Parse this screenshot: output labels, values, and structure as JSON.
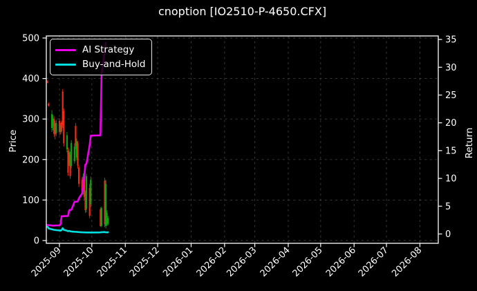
{
  "chart_data": {
    "type": "candlestick+line",
    "title": "cnoption [IO2510-P-4650.CFX]",
    "x_axis": {
      "ticks": [
        "2025-09",
        "2025-10",
        "2025-11",
        "2025-12",
        "2026-01",
        "2026-02",
        "2026-03",
        "2026-04",
        "2026-05",
        "2026-06",
        "2026-07",
        "2026-08"
      ],
      "tick_rotation_deg": 45
    },
    "left_axis": {
      "label": "Price",
      "ticks": [
        0,
        100,
        200,
        300,
        400,
        500
      ],
      "range": [
        0,
        500
      ]
    },
    "right_axis": {
      "label": "Return",
      "ticks": [
        0,
        5,
        10,
        15,
        20,
        25,
        30,
        35
      ],
      "range": [
        0,
        35
      ]
    },
    "legend": [
      {
        "label": "AI Strategy",
        "color": "#ee00ee"
      },
      {
        "label": "Buy-and-Hold",
        "color": "#00e0e0"
      }
    ],
    "colors": {
      "background": "#000000",
      "text": "#ffffff",
      "grid": "#575757",
      "candle_up": "#14a014",
      "candle_down": "#ea2d18"
    },
    "grid": true,
    "candles_columns": [
      "date",
      "open",
      "high",
      "low",
      "close"
    ],
    "candles": [
      [
        "2025-08-21",
        393,
        396,
        388,
        390
      ],
      [
        "2025-08-22",
        338,
        341,
        331,
        333
      ],
      [
        "2025-08-25",
        278,
        322,
        268,
        312
      ],
      [
        "2025-08-26",
        282,
        310,
        272,
        302
      ],
      [
        "2025-08-27",
        300,
        306,
        256,
        264
      ],
      [
        "2025-08-28",
        290,
        296,
        250,
        262
      ],
      [
        "2025-08-29",
        265,
        298,
        258,
        290
      ],
      [
        "2025-09-01",
        295,
        302,
        260,
        268
      ],
      [
        "2025-09-02",
        268,
        290,
        262,
        284
      ],
      [
        "2025-09-03",
        292,
        296,
        264,
        270
      ],
      [
        "2025-09-04",
        368,
        374,
        278,
        286
      ],
      [
        "2025-09-05",
        320,
        326,
        232,
        240
      ],
      [
        "2025-09-08",
        225,
        268,
        218,
        260
      ],
      [
        "2025-09-09",
        222,
        230,
        160,
        167
      ],
      [
        "2025-09-10",
        190,
        226,
        184,
        218
      ],
      [
        "2025-09-11",
        213,
        220,
        152,
        159
      ],
      [
        "2025-09-12",
        184,
        248,
        178,
        241
      ],
      [
        "2025-09-15",
        196,
        240,
        190,
        232
      ],
      [
        "2025-09-16",
        283,
        290,
        225,
        233
      ],
      [
        "2025-09-17",
        205,
        252,
        198,
        245
      ],
      [
        "2025-09-18",
        240,
        246,
        178,
        185
      ],
      [
        "2025-09-19",
        180,
        186,
        132,
        140
      ],
      [
        "2025-09-22",
        150,
        156,
        115,
        122
      ],
      [
        "2025-09-23",
        122,
        166,
        114,
        158
      ],
      [
        "2025-09-24",
        152,
        158,
        100,
        108
      ],
      [
        "2025-09-25",
        118,
        124,
        68,
        75
      ],
      [
        "2025-09-26",
        78,
        165,
        70,
        159
      ],
      [
        "2025-09-29",
        130,
        140,
        55,
        61
      ],
      [
        "2025-09-30",
        90,
        158,
        82,
        150
      ],
      [
        "2025-10-09",
        77,
        82,
        34,
        36
      ],
      [
        "2025-10-10",
        36,
        84,
        33,
        80
      ],
      [
        "2025-10-13",
        148,
        155,
        33,
        40
      ],
      [
        "2025-10-14",
        36,
        150,
        30,
        140
      ],
      [
        "2025-10-15",
        40,
        74,
        36,
        68
      ],
      [
        "2025-10-16",
        42,
        60,
        38,
        55
      ]
    ],
    "series": [
      {
        "name": "AI Strategy",
        "axis": "right",
        "color": "#ee00ee",
        "points": [
          [
            "2025-08-21",
            1.6
          ],
          [
            "2025-08-26",
            1.5
          ],
          [
            "2025-09-01",
            1.55
          ],
          [
            "2025-09-02",
            1.75
          ],
          [
            "2025-09-03",
            3.2
          ],
          [
            "2025-09-09",
            3.25
          ],
          [
            "2025-09-10",
            4.3
          ],
          [
            "2025-09-12",
            4.35
          ],
          [
            "2025-09-15",
            5.8
          ],
          [
            "2025-09-18",
            5.85
          ],
          [
            "2025-09-19",
            6.4
          ],
          [
            "2025-09-22",
            7.3
          ],
          [
            "2025-09-23",
            8.6
          ],
          [
            "2025-09-24",
            10.4
          ],
          [
            "2025-09-25",
            12.5
          ],
          [
            "2025-09-26",
            12.6
          ],
          [
            "2025-09-29",
            16.0
          ],
          [
            "2025-09-30",
            17.7
          ],
          [
            "2025-10-09",
            17.75
          ],
          [
            "2025-10-10",
            28.8
          ],
          [
            "2025-10-13",
            33.0
          ],
          [
            "2025-10-14",
            34.4
          ]
        ]
      },
      {
        "name": "Buy-and-Hold",
        "axis": "right",
        "color": "#00e0e0",
        "points": [
          [
            "2025-08-21",
            1.3
          ],
          [
            "2025-08-22",
            1.0
          ],
          [
            "2025-08-25",
            0.85
          ],
          [
            "2025-08-27",
            0.75
          ],
          [
            "2025-08-29",
            0.7
          ],
          [
            "2025-09-01",
            0.65
          ],
          [
            "2025-09-02",
            0.6
          ],
          [
            "2025-09-03",
            0.7
          ],
          [
            "2025-09-04",
            1.05
          ],
          [
            "2025-09-05",
            0.75
          ],
          [
            "2025-09-08",
            0.6
          ],
          [
            "2025-09-09",
            0.5
          ],
          [
            "2025-09-10",
            0.55
          ],
          [
            "2025-09-11",
            0.5
          ],
          [
            "2025-09-12",
            0.45
          ],
          [
            "2025-09-15",
            0.4
          ],
          [
            "2025-09-17",
            0.38
          ],
          [
            "2025-09-19",
            0.33
          ],
          [
            "2025-09-22",
            0.3
          ],
          [
            "2025-09-24",
            0.28
          ],
          [
            "2025-09-26",
            0.27
          ],
          [
            "2025-09-29",
            0.27
          ],
          [
            "2025-09-30",
            0.26
          ],
          [
            "2025-10-09",
            0.28
          ],
          [
            "2025-10-10",
            0.32
          ],
          [
            "2025-10-13",
            0.35
          ],
          [
            "2025-10-14",
            0.3
          ],
          [
            "2025-10-15",
            0.28
          ],
          [
            "2025-10-16",
            0.3
          ]
        ]
      }
    ]
  }
}
